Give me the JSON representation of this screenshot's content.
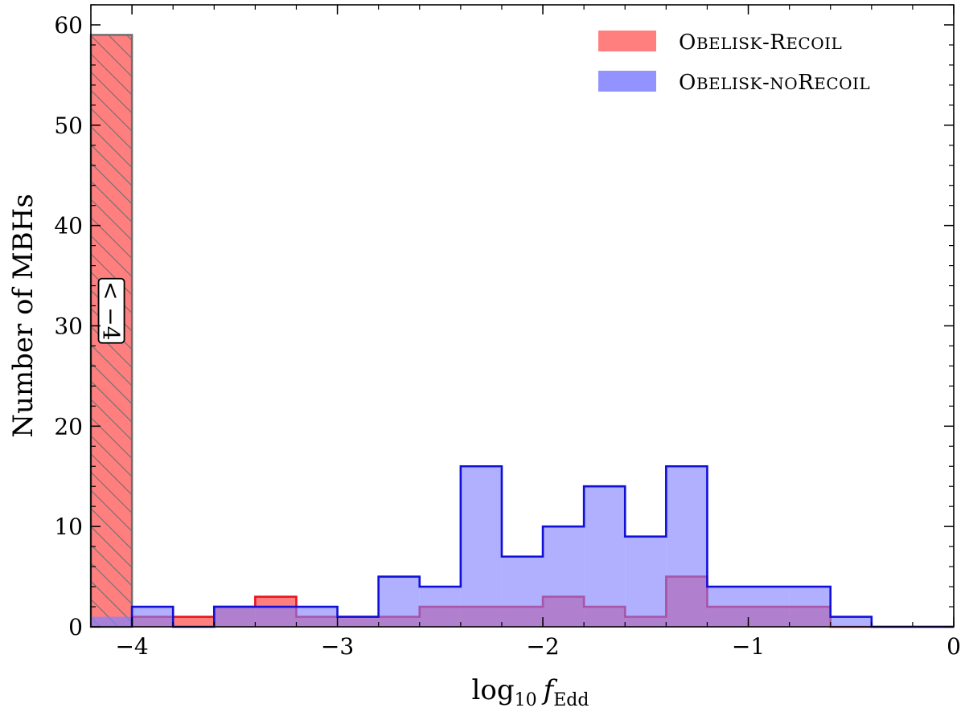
{
  "chart_data": {
    "type": "bar",
    "title": "",
    "xlabel": {
      "base": "log",
      "sub": "10",
      "var": "f",
      "var_sub": "Edd"
    },
    "ylabel": "Number of MBHs",
    "xlim": [
      -4.2,
      0
    ],
    "ylim": [
      0,
      62
    ],
    "xticks": [
      -4,
      -3,
      -2,
      -1,
      0
    ],
    "xtick_labels": [
      "−4",
      "−3",
      "−2",
      "−1",
      "0"
    ],
    "yticks": [
      0,
      10,
      20,
      30,
      40,
      50,
      60
    ],
    "ytick_labels": [
      "0",
      "10",
      "20",
      "30",
      "40",
      "50",
      "60"
    ],
    "bin_edges": [
      -4.0,
      -3.8,
      -3.6,
      -3.4,
      -3.2,
      -3.0,
      -2.8,
      -2.6,
      -2.4,
      -2.2,
      -2.0,
      -1.8,
      -1.6,
      -1.4,
      -1.2,
      -1.0,
      -0.8,
      -0.6,
      -0.4,
      -0.2,
      0.0
    ],
    "series": [
      {
        "name": "Obelisk-Recoil",
        "legend_parts": [
          [
            "O",
            "BELISK"
          ],
          [
            "-",
            ""
          ],
          [
            "R",
            "ECOIL"
          ]
        ],
        "fill": "#ff7f7f",
        "edge": "#e8141e",
        "values": [
          1,
          1,
          2,
          3,
          1,
          1,
          1,
          2,
          2,
          2,
          3,
          2,
          1,
          5,
          2,
          2,
          2,
          0,
          0,
          0
        ],
        "underflow": {
          "range": [
            -4.2,
            -4.0
          ],
          "value": 59,
          "label": "< −4"
        }
      },
      {
        "name": "Obelisk-noRecoil",
        "legend_parts": [
          [
            "O",
            "BELISK"
          ],
          [
            "-",
            "NO"
          ],
          [
            "R",
            "ECOIL"
          ]
        ],
        "fill": "#8080ff",
        "edge": "#1010d8",
        "values": [
          2,
          0,
          2,
          2,
          2,
          1,
          5,
          4,
          16,
          7,
          10,
          14,
          9,
          16,
          4,
          4,
          4,
          1,
          0,
          0
        ],
        "underflow": {
          "range": [
            -4.2,
            -4.0
          ],
          "value": 1
        }
      }
    ],
    "legend_position": "top-right",
    "grid": false
  }
}
